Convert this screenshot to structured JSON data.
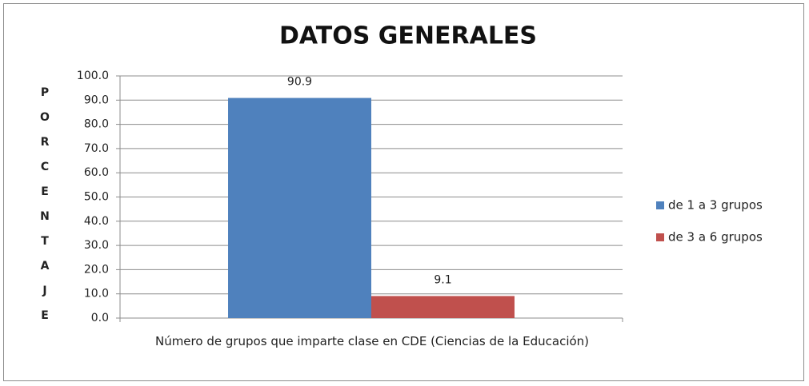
{
  "chart_data": {
    "type": "bar",
    "title": "DATOS GENERALES",
    "ylabel": "PORCENTAJE",
    "categories": [
      "Número de grupos que imparte clase en CDE (Ciencias de la Educación)"
    ],
    "series": [
      {
        "name": "de 1 a 3 grupos",
        "color": "#4f81bd",
        "values": [
          90.9
        ]
      },
      {
        "name": "de 3 a 6 grupos",
        "color": "#c0504d",
        "values": [
          9.1
        ]
      }
    ],
    "ylim": [
      0,
      100
    ],
    "yticks": [
      {
        "value": 0,
        "label": "0.0"
      },
      {
        "value": 10,
        "label": "10.0"
      },
      {
        "value": 20,
        "label": "20.0"
      },
      {
        "value": 30,
        "label": "30.0"
      },
      {
        "value": 40,
        "label": "40.0"
      },
      {
        "value": 50,
        "label": "50.0"
      },
      {
        "value": 60,
        "label": "60.0"
      },
      {
        "value": 70,
        "label": "70.0"
      },
      {
        "value": 80,
        "label": "80.0"
      },
      {
        "value": 90,
        "label": "90.0"
      },
      {
        "value": 100,
        "label": "100.0"
      }
    ],
    "grid": true,
    "legend": "right"
  }
}
